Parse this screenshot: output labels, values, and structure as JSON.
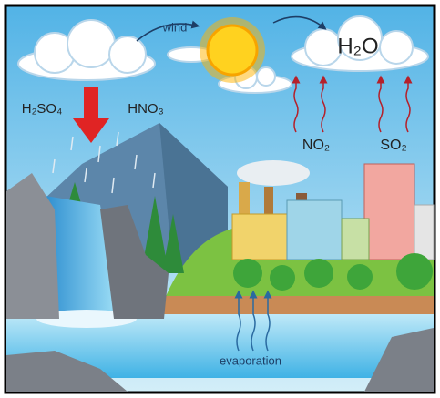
{
  "labels": {
    "wind": "wind",
    "water": "H₂O",
    "sulfuric_acid": "H₂SO₄",
    "nitric_acid": "HNO₃",
    "nitrogen_dioxide": "NO₂",
    "sulfur_dioxide": "SO₂",
    "evaporation": "evaporation"
  }
}
